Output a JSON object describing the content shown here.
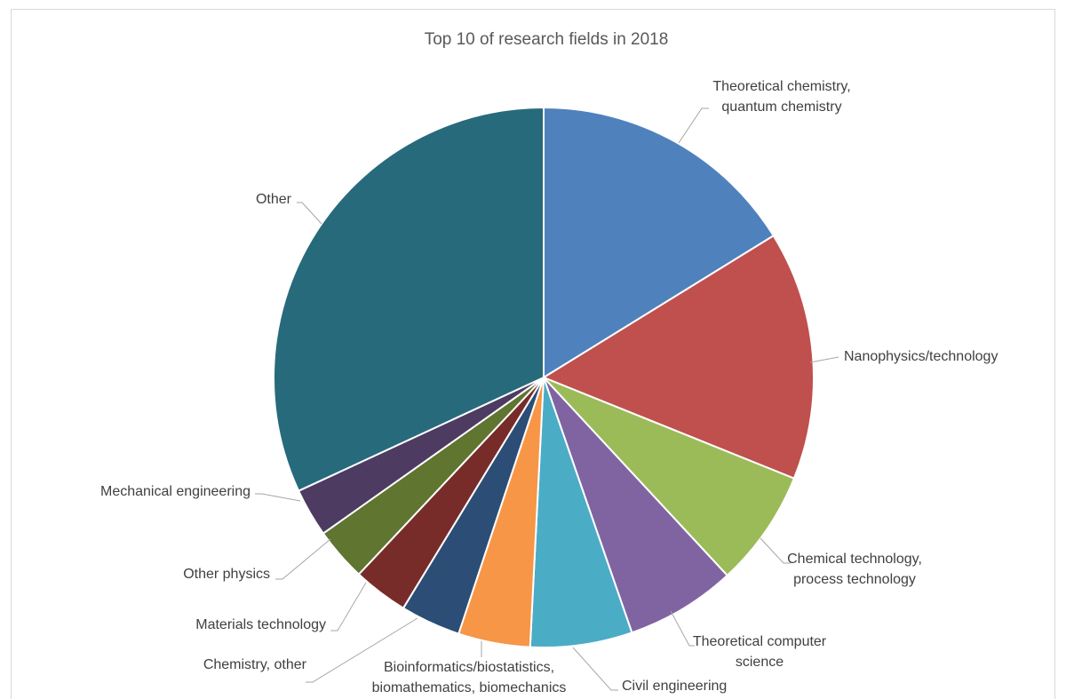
{
  "chart_data": {
    "type": "pie",
    "title": "Top 10 of research fields in 2018",
    "start_angle_deg": 0,
    "direction": "clockwise",
    "slices": [
      {
        "label": "Theoretical chemistry, quantum chemistry",
        "value": 16.2,
        "color": "#4f81bd"
      },
      {
        "label": "Nanophysics/technology",
        "value": 14.9,
        "color": "#c0504d"
      },
      {
        "label": "Chemical technology, process technology",
        "value": 7.0,
        "color": "#9bbb59"
      },
      {
        "label": "Theoretical computer science",
        "value": 6.6,
        "color": "#8064a2"
      },
      {
        "label": "Civil engineering",
        "value": 6.1,
        "color": "#4bacc6"
      },
      {
        "label": "Bioinformatics/biostatistics, biomathematics, biomechanics",
        "value": 4.3,
        "color": "#f79646"
      },
      {
        "label": "Chemistry, other",
        "value": 3.6,
        "color": "#2c4d75"
      },
      {
        "label": "Materials technology",
        "value": 3.3,
        "color": "#772c2a"
      },
      {
        "label": "Other physics",
        "value": 3.2,
        "color": "#5f7530"
      },
      {
        "label": "Mechanical engineering",
        "value": 2.9,
        "color": "#4d3b62"
      },
      {
        "label": "Other",
        "value": 31.9,
        "color": "#276a7c"
      }
    ],
    "legend": "none (data labels outside with leader lines)"
  }
}
